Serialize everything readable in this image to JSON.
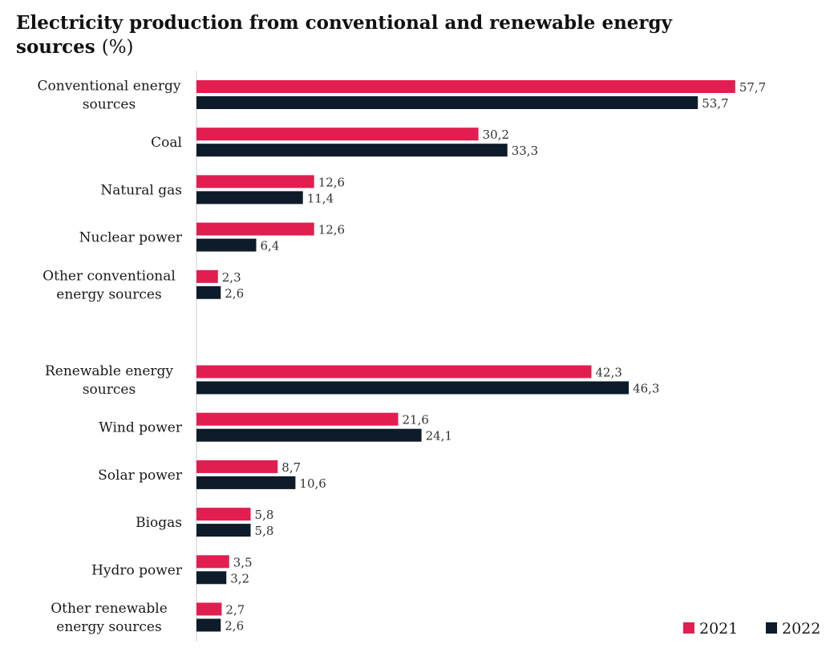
{
  "title": "Electricity production from conventional and renewable energy sources",
  "title_unit": "(%)",
  "colors": {
    "2021": "#e21e50",
    "2022": "#0d1b2a",
    "axis": "#cccccc"
  },
  "chart_data": {
    "type": "bar",
    "orientation": "horizontal",
    "title": "Electricity production from conventional and renewable energy sources (%)",
    "xlabel": "",
    "ylabel": "",
    "xlim": [
      0,
      60
    ],
    "grid": false,
    "legend_position": "bottom-right",
    "groups": [
      {
        "categories": [
          {
            "label_lines": [
              "Conventional energy",
              "sources"
            ],
            "values": [
              57.7,
              53.7
            ],
            "labels": [
              "57,7",
              "53,7"
            ]
          },
          {
            "label_lines": [
              "Coal"
            ],
            "values": [
              30.2,
              33.3
            ],
            "labels": [
              "30,2",
              "33,3"
            ]
          },
          {
            "label_lines": [
              "Natural gas"
            ],
            "values": [
              12.6,
              11.4
            ],
            "labels": [
              "12,6",
              "11,4"
            ]
          },
          {
            "label_lines": [
              "Nuclear power"
            ],
            "values": [
              12.6,
              6.4
            ],
            "labels": [
              "12,6",
              "6,4"
            ]
          },
          {
            "label_lines": [
              "Other conventional",
              "energy sources"
            ],
            "values": [
              2.3,
              2.6
            ],
            "labels": [
              "2,3",
              "2,6"
            ]
          }
        ]
      },
      {
        "categories": [
          {
            "label_lines": [
              "Renewable energy",
              "sources"
            ],
            "values": [
              42.3,
              46.3
            ],
            "labels": [
              "42,3",
              "46,3"
            ]
          },
          {
            "label_lines": [
              "Wind power"
            ],
            "values": [
              21.6,
              24.1
            ],
            "labels": [
              "21,6",
              "24,1"
            ]
          },
          {
            "label_lines": [
              "Solar power"
            ],
            "values": [
              8.7,
              10.6
            ],
            "labels": [
              "8,7",
              "10,6"
            ]
          },
          {
            "label_lines": [
              "Biogas"
            ],
            "values": [
              5.8,
              5.8
            ],
            "labels": [
              "5,8",
              "5,8"
            ]
          },
          {
            "label_lines": [
              "Hydro power"
            ],
            "values": [
              3.5,
              3.2
            ],
            "labels": [
              "3,5",
              "3,2"
            ]
          },
          {
            "label_lines": [
              "Other renewable",
              "energy sources"
            ],
            "values": [
              2.7,
              2.6
            ],
            "labels": [
              "2,7",
              "2,6"
            ]
          }
        ]
      }
    ],
    "series": [
      {
        "name": "2021"
      },
      {
        "name": "2022"
      }
    ]
  }
}
